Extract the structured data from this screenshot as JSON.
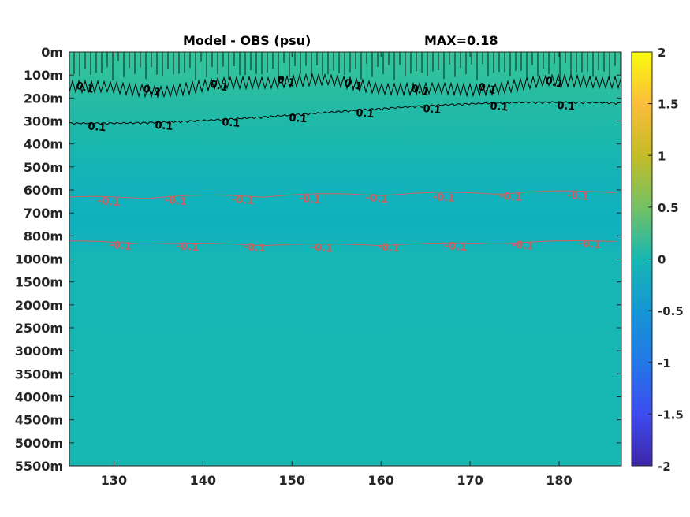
{
  "chart_data": {
    "type": "heatmap",
    "title": "Model - OBS (psu)",
    "annotation": "MAX=0.18",
    "x_ticks": [
      130,
      140,
      150,
      160,
      170,
      180
    ],
    "xlim": [
      125,
      187
    ],
    "y_tick_labels": [
      "0m",
      "100m",
      "200m",
      "300m",
      "400m",
      "500m",
      "600m",
      "700m",
      "800m",
      "1000m",
      "1500m",
      "2000m",
      "2500m",
      "3000m",
      "3500m",
      "4000m",
      "4500m",
      "5000m",
      "5500m"
    ],
    "colorbar": {
      "ticks": [
        "2",
        "1.5",
        "1",
        "0.5",
        "0",
        "-0.5",
        "-1",
        "-1.5",
        "-2"
      ],
      "range": [
        -2,
        2
      ],
      "colormap": "parula"
    },
    "field": {
      "layers": [
        {
          "from": "0m",
          "to": "100m",
          "value": 0.15
        },
        {
          "from": "100m",
          "to": "300m",
          "value": 0.12
        },
        {
          "from": "300m",
          "to": "600m",
          "value": 0.05
        },
        {
          "from": "600m",
          "to": "900m",
          "value": -0.05
        },
        {
          "from": "900m",
          "to": "1000m",
          "value": -0.08
        },
        {
          "from": "1000m",
          "to": "5500m",
          "value": 0.0
        }
      ]
    },
    "contours": [
      {
        "label": "0.1",
        "color": "#000000",
        "depth": "100m-150m"
      },
      {
        "label": "0.1",
        "color": "#000000",
        "depth": "300m"
      },
      {
        "label": "-0.1",
        "color": "#c86060",
        "depth": "650m"
      },
      {
        "label": "-0.1",
        "color": "#c86060",
        "depth": "1000m"
      }
    ]
  }
}
